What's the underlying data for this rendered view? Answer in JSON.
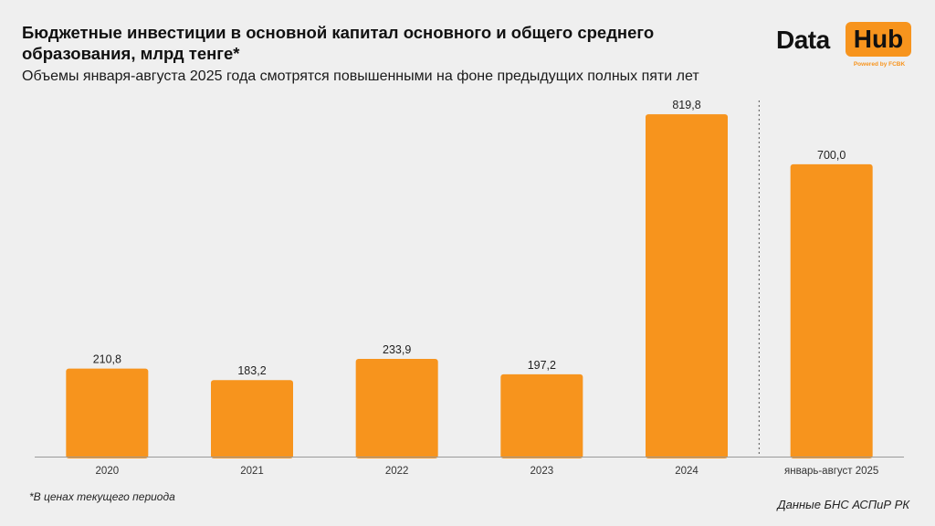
{
  "title": "Бюджетные инвестиции в основной капитал основного и общего среднего образования, млрд тенге*",
  "subtitle": "Объемы января-августа 2025 года смотрятся повышенными на фоне предыдущих полных пяти лет",
  "logo": {
    "data": "Data",
    "hub": "Hub",
    "powered": "Powered by FCBK"
  },
  "footnote": "*В ценах текущего периода",
  "source": "Данные БНС АСПиР РК",
  "colors": {
    "bar": "#f7941d",
    "background": "#efefef",
    "axis": "#9a9a9a"
  },
  "chart_data": {
    "type": "bar",
    "categories": [
      "2020",
      "2021",
      "2022",
      "2023",
      "2024",
      "январь-август 2025"
    ],
    "values": [
      210.8,
      183.2,
      233.9,
      197.2,
      819.8,
      700.0
    ],
    "value_labels": [
      "210,8",
      "183,2",
      "233,9",
      "197,2",
      "819,8",
      "700,0"
    ],
    "ylim": [
      0,
      820
    ],
    "grid": false,
    "separator_before_category": 5
  }
}
